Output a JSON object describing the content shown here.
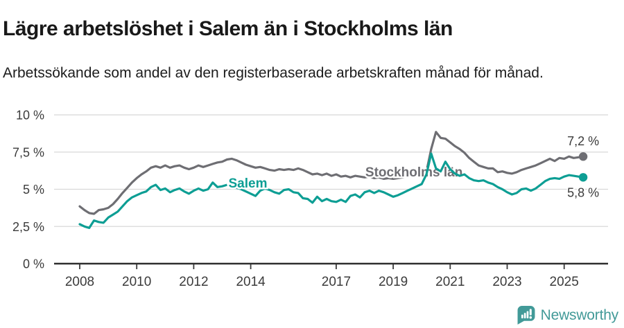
{
  "header": {
    "title": "Lägre arbetslöshet i Salem än i Stockholms län",
    "subtitle": "Arbetssökande som andel av den registerbaserade arbetskraften månad för månad."
  },
  "footer": {
    "brand": "Newsworthy",
    "brand_color": "#429a98",
    "logo_icon": "newsworthy-speech-bubble-bar-chart-icon"
  },
  "colors": {
    "stockholm_line": "#6e6e73",
    "salem_line": "#0d9e94",
    "grid": "#d8d8d8",
    "axis": "#3a3a3a",
    "tick_label": "#3b3b3b",
    "value_label": "#3b3b3b"
  },
  "chart_data": {
    "type": "line",
    "title": "Lägre arbetslöshet i Salem än i Stockholms län",
    "subtitle": "Arbetssökande som andel av den registerbaserade arbetskraften månad för månad.",
    "grid": "horizontal",
    "legend_position": "inline-labels",
    "x_axis": {
      "unit": "year",
      "range_years": [
        2008,
        2025.67
      ],
      "ticks": [
        2008,
        2010,
        2012,
        2014,
        2017,
        2019,
        2021,
        2023,
        2025
      ],
      "tick_labels": [
        "2008",
        "2010",
        "2012",
        "2014",
        "2017",
        "2019",
        "2021",
        "2023",
        "2025"
      ]
    },
    "y_axis": {
      "unit": "%",
      "range": [
        0,
        10
      ],
      "ticks": [
        0,
        2.5,
        5,
        7.5,
        10
      ],
      "tick_labels": [
        "0 %",
        "2,5 %",
        "5 %",
        "7,5 %",
        "10 %"
      ]
    },
    "x_start_year": 2008,
    "points_per_year": 6,
    "series": [
      {
        "name": "Stockholms län",
        "color": "#6e6e73",
        "end_label": "7,2 %",
        "end_label_dy": -22,
        "label_anchor": {
          "year": 2019.73,
          "value": 6.17
        },
        "values": [
          3.85,
          3.6,
          3.4,
          3.35,
          3.6,
          3.65,
          3.75,
          4.0,
          4.35,
          4.75,
          5.1,
          5.45,
          5.75,
          6.0,
          6.2,
          6.45,
          6.55,
          6.45,
          6.6,
          6.45,
          6.55,
          6.6,
          6.45,
          6.35,
          6.45,
          6.6,
          6.5,
          6.6,
          6.7,
          6.8,
          6.85,
          7.0,
          7.05,
          6.95,
          6.8,
          6.65,
          6.55,
          6.45,
          6.5,
          6.4,
          6.3,
          6.25,
          6.35,
          6.3,
          6.35,
          6.3,
          6.4,
          6.3,
          6.15,
          6.0,
          6.05,
          5.95,
          6.05,
          5.9,
          6.0,
          5.85,
          5.9,
          5.8,
          5.9,
          5.85,
          5.8,
          5.85,
          5.75,
          5.8,
          5.7,
          5.75,
          5.7,
          5.75,
          5.8,
          5.85,
          5.9,
          5.95,
          5.95,
          6.2,
          7.7,
          8.85,
          8.45,
          8.4,
          8.15,
          7.9,
          7.7,
          7.45,
          7.1,
          6.85,
          6.6,
          6.5,
          6.4,
          6.4,
          6.15,
          6.2,
          6.1,
          6.05,
          6.15,
          6.3,
          6.4,
          6.5,
          6.6,
          6.75,
          6.9,
          7.05,
          6.9,
          7.1,
          7.05,
          7.2,
          7.1,
          7.15,
          7.2
        ]
      },
      {
        "name": "Salem",
        "color": "#0d9e94",
        "end_label": "5,8 %",
        "end_label_dy": 22,
        "label_anchor": {
          "year": 2013.9,
          "value": 5.42
        },
        "values": [
          2.65,
          2.5,
          2.4,
          2.9,
          2.8,
          2.75,
          3.1,
          3.3,
          3.5,
          3.85,
          4.2,
          4.45,
          4.6,
          4.75,
          4.85,
          5.15,
          5.3,
          4.95,
          5.05,
          4.8,
          4.95,
          5.05,
          4.85,
          4.7,
          4.9,
          5.05,
          4.9,
          5.0,
          5.45,
          5.15,
          5.2,
          5.3,
          5.25,
          5.1,
          5.0,
          4.85,
          4.7,
          4.55,
          4.9,
          5.05,
          4.95,
          4.8,
          4.7,
          4.95,
          5.0,
          4.8,
          4.75,
          4.4,
          4.35,
          4.1,
          4.5,
          4.2,
          4.35,
          4.2,
          4.15,
          4.3,
          4.15,
          4.55,
          4.65,
          4.45,
          4.8,
          4.9,
          4.75,
          4.9,
          4.8,
          4.65,
          4.5,
          4.6,
          4.75,
          4.9,
          5.05,
          5.2,
          5.35,
          6.0,
          7.4,
          6.4,
          6.2,
          6.85,
          6.35,
          6.05,
          5.9,
          6.0,
          5.75,
          5.6,
          5.55,
          5.6,
          5.45,
          5.35,
          5.15,
          5.0,
          4.8,
          4.65,
          4.75,
          5.0,
          5.05,
          4.9,
          5.05,
          5.3,
          5.55,
          5.7,
          5.75,
          5.7,
          5.85,
          5.95,
          5.9,
          5.85,
          5.8
        ]
      }
    ]
  }
}
